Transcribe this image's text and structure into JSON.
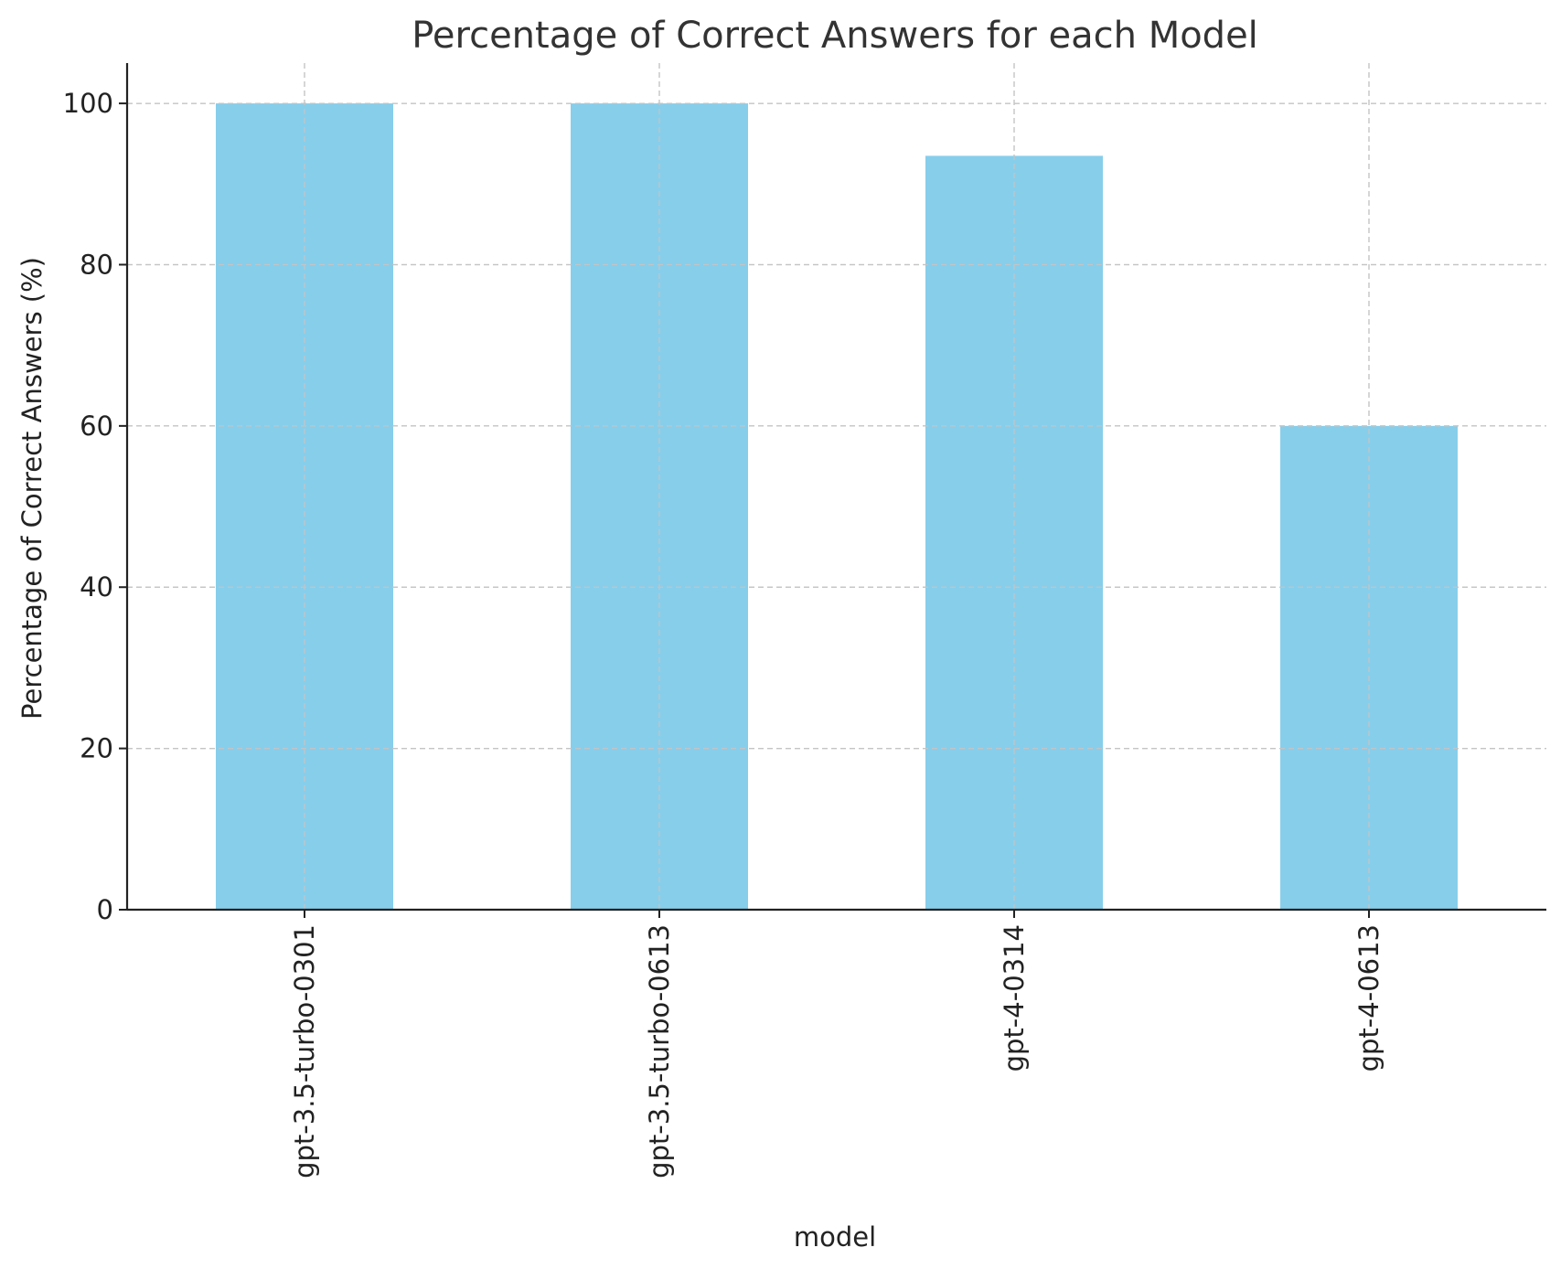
{
  "chart_data": {
    "type": "bar",
    "title": "Percentage of Correct Answers for each Model",
    "xlabel": "model",
    "ylabel": "Percentage of Correct Answers (%)",
    "categories": [
      "gpt-3.5-turbo-0301",
      "gpt-3.5-turbo-0613",
      "gpt-4-0314",
      "gpt-4-0613"
    ],
    "values": [
      100,
      100,
      93.5,
      60
    ],
    "ylim": [
      0,
      105
    ],
    "yticks": [
      0,
      20,
      40,
      60,
      80,
      100
    ],
    "grid": true,
    "colors": {
      "bar": "#87ceeb"
    }
  }
}
